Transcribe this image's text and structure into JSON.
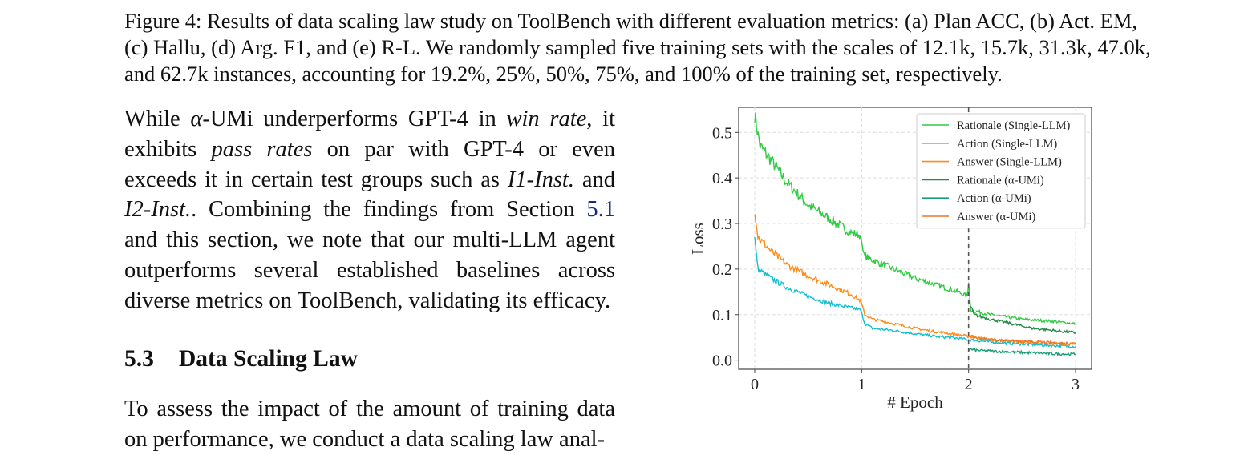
{
  "caption": "Figure 4: Results of data scaling law study on ToolBench with different evaluation metrics: (a) Plan ACC, (b) Act. EM, (c) Hallu, (d) Arg. F1, and (e) R-L. We randomly sampled five training sets with the scales of 12.1k, 15.7k, 31.3k, 47.0k, and 62.7k instances, accounting for 19.2%, 25%, 50%, 75%, and 100% of the training set, respectively.",
  "paragraph1": {
    "t1": "While ",
    "alpha": "α",
    "t2": "-UMi underperforms GPT-4 in ",
    "win_rate": "win rate",
    "t3": ", it exhibits ",
    "pass_rates": "pass rates",
    "t4": " on par with GPT-4 or even exceeds it in certain test groups such as ",
    "i1": "I1-Inst.",
    "t5": " and ",
    "i2": "I2-Inst.",
    "t6": ". Combining the findings from Section ",
    "section_ref": "5.1",
    "t7": " and this section, we note that our multi-LLM agent outperforms several established baselines across diverse metrics on ToolBench, validating its efficacy."
  },
  "section": {
    "number": "5.3",
    "title": "Data Scaling Law"
  },
  "paragraph2": "To assess the impact of the amount of training data on performance, we conduct a data scaling law anal-",
  "chart_data": {
    "type": "line",
    "xlabel": "# Epoch",
    "ylabel": "Loss",
    "xlim": [
      -0.15,
      3.15
    ],
    "ylim": [
      -0.02,
      0.555
    ],
    "xticks": [
      "0",
      "1",
      "2",
      "3"
    ],
    "yticks": [
      "0.0",
      "0.1",
      "0.2",
      "0.3",
      "0.4",
      "0.5"
    ],
    "grid": true,
    "legend_position": "top-right",
    "vline_x": 2,
    "series": [
      {
        "name": "Rationale (Single-LLM)",
        "color": "#2ecc40",
        "x": [
          0,
          0.05,
          0.15,
          0.3,
          0.5,
          0.7,
          0.9,
          0.99,
          1.02,
          1.1,
          1.3,
          1.5,
          1.7,
          1.9,
          1.99,
          2.0,
          2.02,
          2.2,
          2.5,
          2.8,
          3.0
        ],
        "y": [
          0.54,
          0.47,
          0.44,
          0.39,
          0.34,
          0.31,
          0.28,
          0.275,
          0.23,
          0.22,
          0.2,
          0.18,
          0.165,
          0.15,
          0.14,
          0.17,
          0.11,
          0.1,
          0.09,
          0.085,
          0.08
        ]
      },
      {
        "name": "Action (Single-LLM)",
        "color": "#17becf",
        "x": [
          0,
          0.03,
          0.15,
          0.3,
          0.5,
          0.7,
          0.9,
          0.99,
          1.03,
          1.1,
          1.3,
          1.5,
          1.7,
          1.9,
          2.0,
          2.2,
          2.5,
          2.8,
          3.0
        ],
        "y": [
          0.27,
          0.2,
          0.18,
          0.16,
          0.14,
          0.125,
          0.115,
          0.11,
          0.08,
          0.07,
          0.065,
          0.058,
          0.052,
          0.048,
          0.045,
          0.04,
          0.035,
          0.032,
          0.03
        ]
      },
      {
        "name": "Answer (Single-LLM)",
        "color": "#ff8c1a",
        "x": [
          0,
          0.03,
          0.15,
          0.3,
          0.5,
          0.7,
          0.9,
          0.99,
          1.03,
          1.1,
          1.3,
          1.5,
          1.7,
          1.9,
          2.0,
          2.2,
          2.5,
          2.8,
          3.0
        ],
        "y": [
          0.32,
          0.27,
          0.24,
          0.21,
          0.185,
          0.165,
          0.145,
          0.13,
          0.1,
          0.09,
          0.08,
          0.07,
          0.062,
          0.056,
          0.052,
          0.045,
          0.04,
          0.036,
          0.035
        ]
      },
      {
        "name": "Rationale (α-UMi)",
        "color": "#238b45",
        "x": [
          2.0,
          2.05,
          2.2,
          2.4,
          2.6,
          2.8,
          3.0
        ],
        "y": [
          0.13,
          0.1,
          0.09,
          0.08,
          0.07,
          0.065,
          0.06
        ]
      },
      {
        "name": "Action (α-UMi)",
        "color": "#1a9e77",
        "x": [
          2.0,
          2.05,
          2.2,
          2.4,
          2.6,
          2.8,
          3.0
        ],
        "y": [
          0.025,
          0.022,
          0.02,
          0.018,
          0.016,
          0.014,
          0.013
        ]
      },
      {
        "name": "Answer (α-UMi)",
        "color": "#e8772e",
        "x": [
          2.0,
          2.05,
          2.2,
          2.4,
          2.6,
          2.8,
          3.0
        ],
        "y": [
          0.055,
          0.05,
          0.045,
          0.042,
          0.04,
          0.038,
          0.037
        ]
      }
    ]
  }
}
